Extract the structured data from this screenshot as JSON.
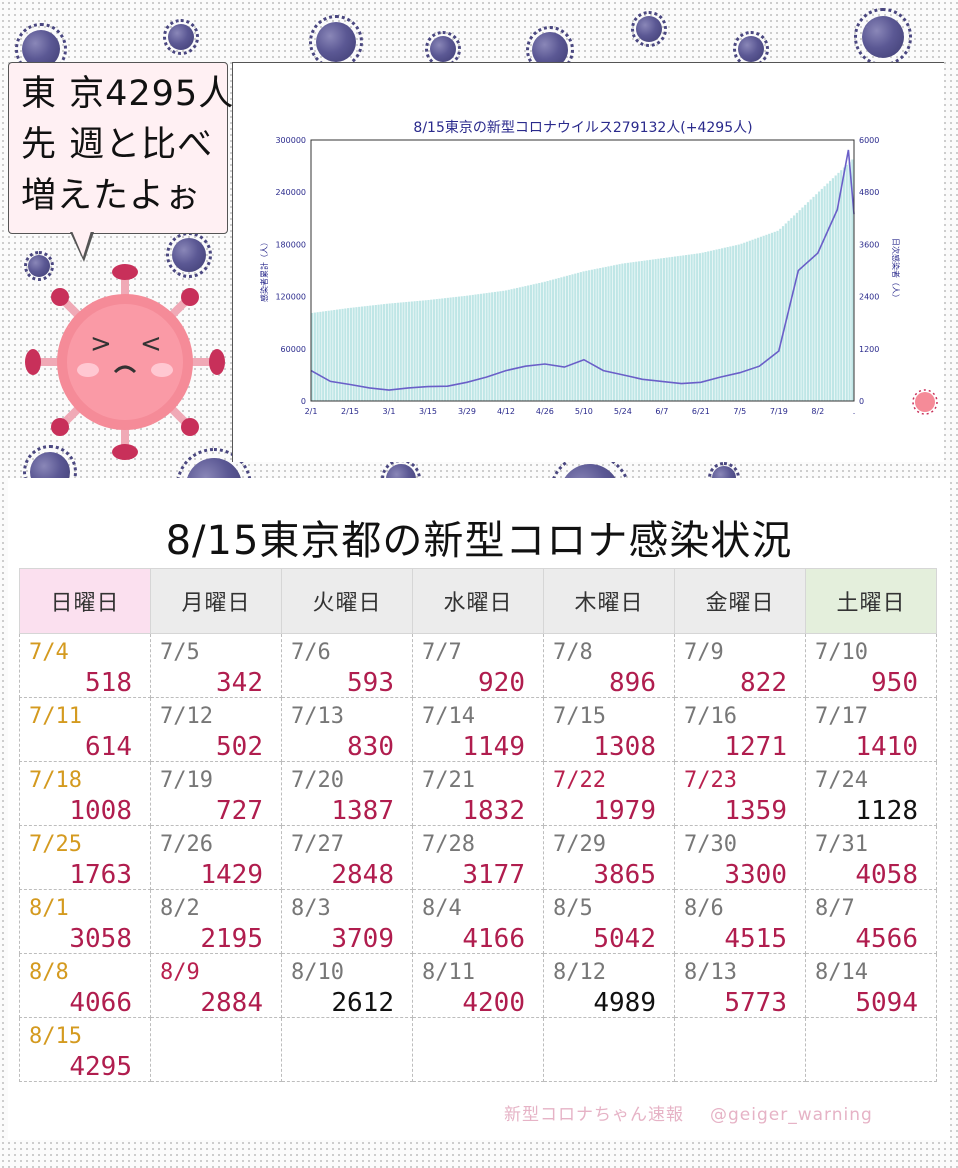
{
  "speech": {
    "lines": [
      "東 京4295人",
      "先 週と比べ",
      "増えたよぉ"
    ]
  },
  "chart_data": {
    "type": "bar",
    "title": "8/15東京の新型コロナウイルス279132人(+4295人)",
    "ylabel": "感染者累計（人）",
    "y2label": "日次感染者（人）",
    "ylim": [
      0,
      300000
    ],
    "y2lim": [
      0,
      6000
    ],
    "yticks": [
      "0",
      "60000",
      "120000",
      "180000",
      "240000",
      "300000"
    ],
    "y2ticks": [
      "0",
      "1200",
      "2400",
      "3600",
      "4800",
      "6000"
    ],
    "xticks": [
      "2/1",
      "2/15",
      "3/1",
      "3/15",
      "3/29",
      "4/12",
      "4/26",
      "5/10",
      "5/24",
      "6/7",
      "6/21",
      "7/5",
      "7/19",
      "8/2",
      "."
    ],
    "series": [
      {
        "name": "累計",
        "type": "bar",
        "x": [
          "2/1",
          "2/15",
          "3/1",
          "3/15",
          "3/29",
          "4/12",
          "4/26",
          "5/10",
          "5/24",
          "6/7",
          "6/21",
          "7/5",
          "7/19",
          "8/2",
          "8/15"
        ],
        "values": [
          101000,
          107000,
          112000,
          116000,
          121000,
          127000,
          137000,
          149000,
          158000,
          164000,
          170000,
          180000,
          196000,
          239000,
          279132
        ]
      },
      {
        "name": "日次",
        "type": "line",
        "x": [
          "2/1",
          "2/8",
          "2/15",
          "2/22",
          "3/1",
          "3/8",
          "3/15",
          "3/22",
          "3/29",
          "4/5",
          "4/12",
          "4/19",
          "4/26",
          "5/3",
          "5/10",
          "5/17",
          "5/24",
          "5/31",
          "6/7",
          "6/14",
          "6/21",
          "6/28",
          "7/5",
          "7/12",
          "7/19",
          "7/26",
          "8/2",
          "8/9",
          "8/13",
          "8/15"
        ],
        "values": [
          700,
          450,
          380,
          300,
          250,
          300,
          330,
          340,
          430,
          550,
          700,
          800,
          850,
          780,
          950,
          700,
          600,
          500,
          450,
          400,
          430,
          550,
          650,
          800,
          1150,
          3000,
          3400,
          4400,
          5773,
          4295
        ]
      }
    ]
  },
  "table": {
    "title": "8/15東京都の新型コロナ感染状況",
    "headers": [
      "日曜日",
      "月曜日",
      "火曜日",
      "水曜日",
      "木曜日",
      "金曜日",
      "土曜日"
    ],
    "rows": [
      [
        {
          "date": "7/4",
          "value": "518"
        },
        {
          "date": "7/5",
          "value": "342"
        },
        {
          "date": "7/6",
          "value": "593"
        },
        {
          "date": "7/7",
          "value": "920"
        },
        {
          "date": "7/8",
          "value": "896"
        },
        {
          "date": "7/9",
          "value": "822"
        },
        {
          "date": "7/10",
          "value": "950"
        }
      ],
      [
        {
          "date": "7/11",
          "value": "614"
        },
        {
          "date": "7/12",
          "value": "502"
        },
        {
          "date": "7/13",
          "value": "830"
        },
        {
          "date": "7/14",
          "value": "1149"
        },
        {
          "date": "7/15",
          "value": "1308"
        },
        {
          "date": "7/16",
          "value": "1271"
        },
        {
          "date": "7/17",
          "value": "1410"
        }
      ],
      [
        {
          "date": "7/18",
          "value": "1008"
        },
        {
          "date": "7/19",
          "value": "727"
        },
        {
          "date": "7/20",
          "value": "1387"
        },
        {
          "date": "7/21",
          "value": "1832"
        },
        {
          "date": "7/22",
          "value": "1979"
        },
        {
          "date": "7/23",
          "value": "1359"
        },
        {
          "date": "7/24",
          "value": "1128"
        }
      ],
      [
        {
          "date": "7/25",
          "value": "1763"
        },
        {
          "date": "7/26",
          "value": "1429"
        },
        {
          "date": "7/27",
          "value": "2848"
        },
        {
          "date": "7/28",
          "value": "3177"
        },
        {
          "date": "7/29",
          "value": "3865"
        },
        {
          "date": "7/30",
          "value": "3300"
        },
        {
          "date": "7/31",
          "value": "4058"
        }
      ],
      [
        {
          "date": "8/1",
          "value": "3058"
        },
        {
          "date": "8/2",
          "value": "2195"
        },
        {
          "date": "8/3",
          "value": "3709"
        },
        {
          "date": "8/4",
          "value": "4166"
        },
        {
          "date": "8/5",
          "value": "5042"
        },
        {
          "date": "8/6",
          "value": "4515"
        },
        {
          "date": "8/7",
          "value": "4566"
        }
      ],
      [
        {
          "date": "8/8",
          "value": "4066"
        },
        {
          "date": "8/9",
          "value": "2884"
        },
        {
          "date": "8/10",
          "value": "2612"
        },
        {
          "date": "8/11",
          "value": "4200"
        },
        {
          "date": "8/12",
          "value": "4989"
        },
        {
          "date": "8/13",
          "value": "5773"
        },
        {
          "date": "8/14",
          "value": "5094"
        }
      ],
      [
        {
          "date": "8/15",
          "value": "4295"
        },
        {
          "date": "",
          "value": ""
        },
        {
          "date": "",
          "value": ""
        },
        {
          "date": "",
          "value": ""
        },
        {
          "date": "",
          "value": ""
        },
        {
          "date": "",
          "value": ""
        },
        {
          "date": "",
          "value": ""
        }
      ]
    ],
    "red_dates": [
      "7/22",
      "7/23",
      "8/9"
    ],
    "black_values": [
      "1128",
      "2612",
      "4989"
    ]
  },
  "credit": {
    "name": "新型コロナちゃん速報",
    "handle": "@geiger_warning"
  },
  "colors": {
    "bar": "#bfe6e6",
    "line": "#6a5fc8",
    "value": "#b01d4e",
    "sunday_date": "#d49a1f",
    "sunday_header": "#fbe0ef",
    "saturday_header": "#e4efdc"
  }
}
